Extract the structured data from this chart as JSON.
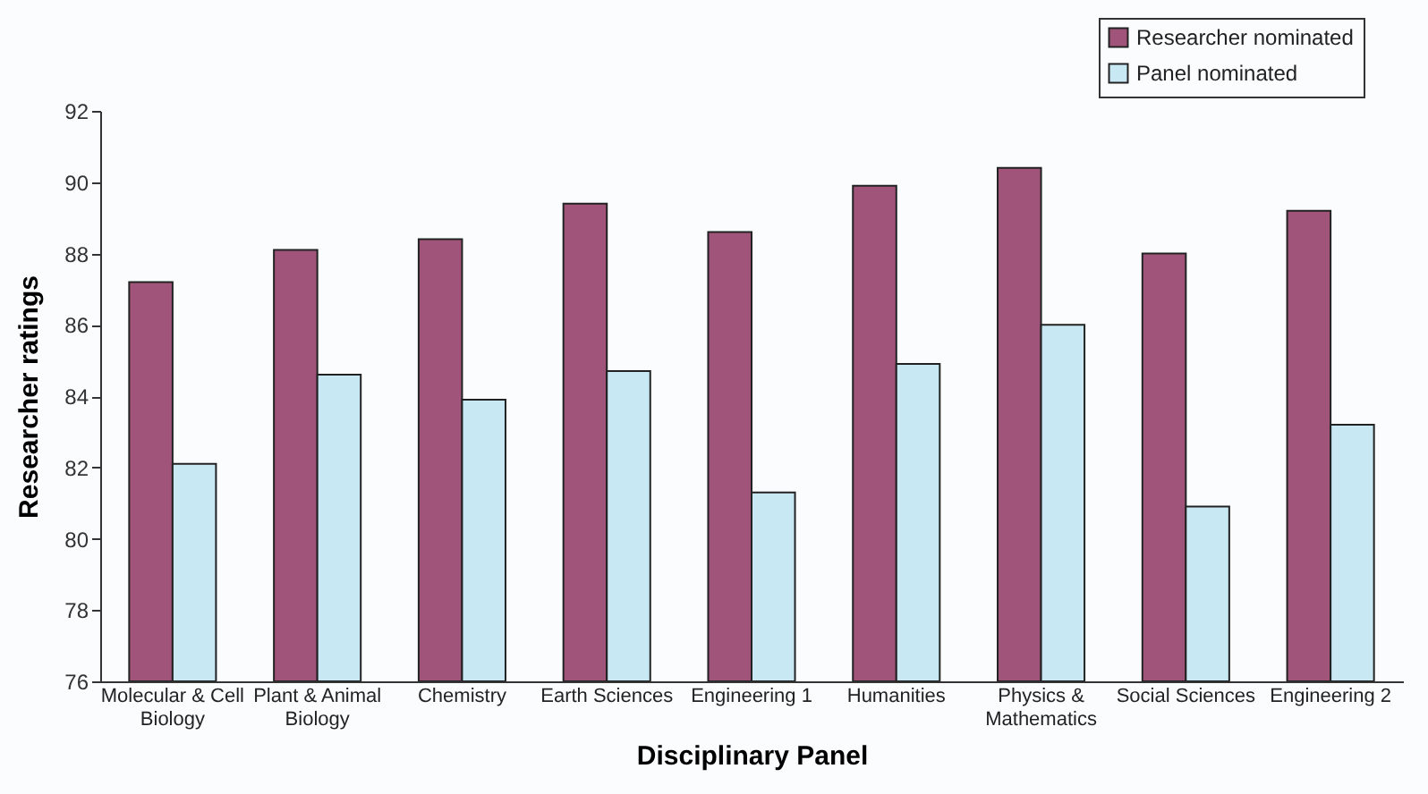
{
  "chart_data": {
    "type": "bar",
    "xlabel": "Disciplinary Panel",
    "ylabel": "Researcher ratings",
    "categories": [
      "Molecular & Cell Biology",
      "Plant & Animal Biology",
      "Chemistry",
      "Earth Sciences",
      "Engineering 1",
      "Humanities",
      "Physics & Mathematics",
      "Social Sciences",
      "Engineering 2"
    ],
    "series": [
      {
        "name": "Researcher nominated",
        "color": "#a0547a",
        "values": [
          87.2,
          88.1,
          88.4,
          89.4,
          88.6,
          89.9,
          90.4,
          88.0,
          89.2
        ]
      },
      {
        "name": "Panel nominated",
        "color": "#c8e8f4",
        "values": [
          82.1,
          84.6,
          83.9,
          84.7,
          81.3,
          84.9,
          86.0,
          80.9,
          83.2
        ]
      }
    ],
    "ylim": [
      76,
      92
    ],
    "yticks": [
      76,
      78,
      80,
      82,
      84,
      86,
      88,
      90,
      92
    ],
    "grid": false,
    "legend": "top right"
  }
}
